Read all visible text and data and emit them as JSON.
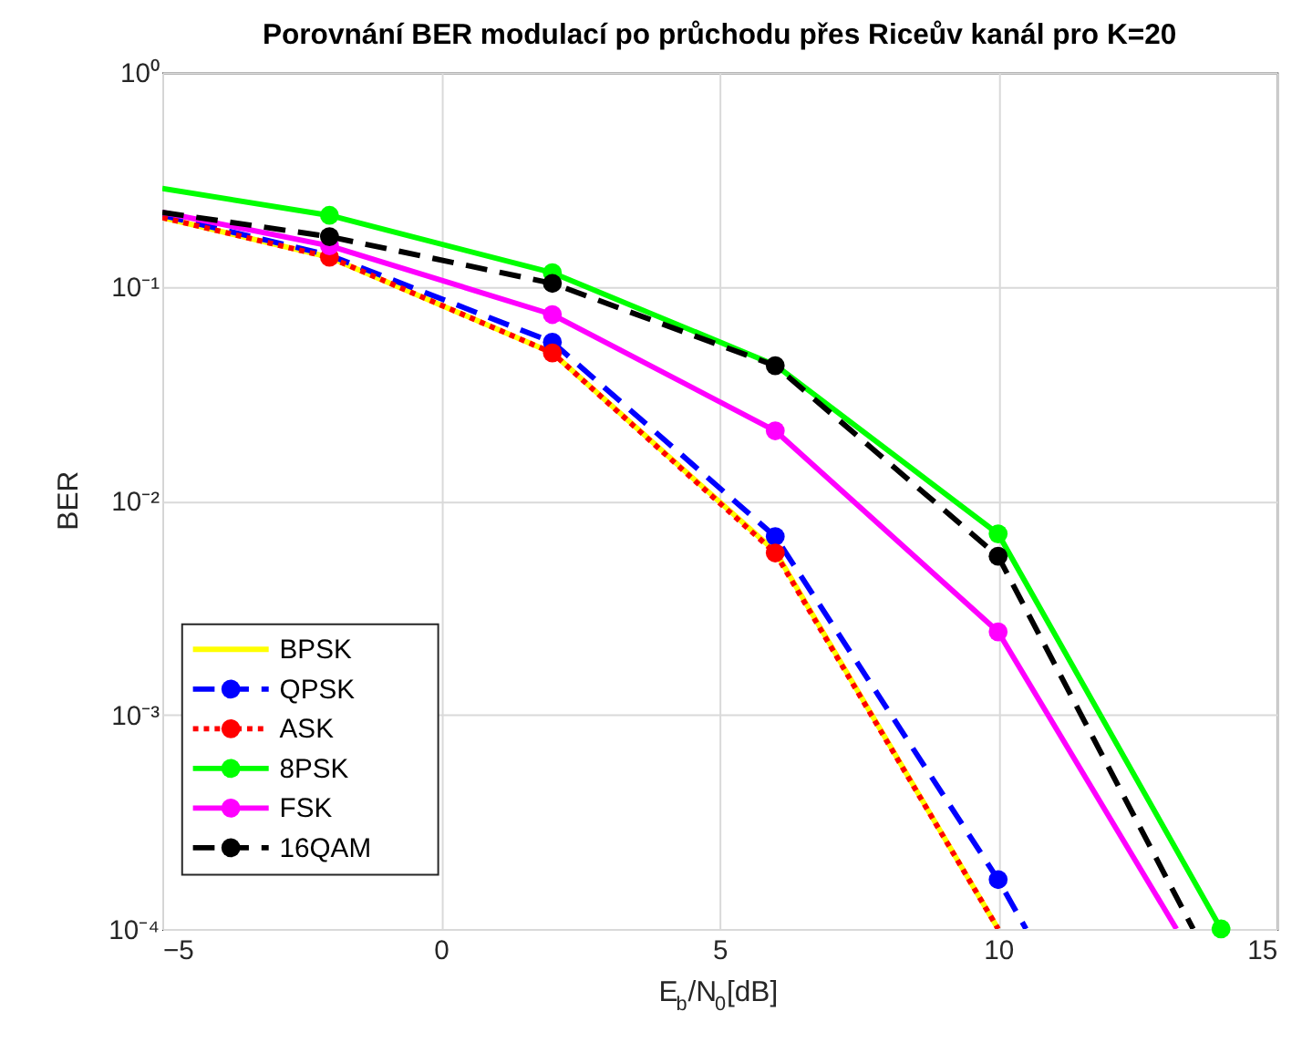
{
  "chart_data": {
    "type": "line",
    "title": "Porovnání BER modulací po průchodu přes Riceův kanál pro K=20",
    "xlabel": "E$_{b}$/N$_{0}$[dB]",
    "ylabel": "BER",
    "log": "y",
    "grid": true,
    "legend": "bottom left",
    "xlim": [
      -5,
      15
    ],
    "xticks": [
      -5,
      0,
      5,
      10,
      15
    ],
    "ylim": [
      0.0001,
      1
    ],
    "yticks": [
      {
        "value": 0.0001,
        "label": "10⁻⁴"
      },
      {
        "value": 0.001,
        "label": "10⁻³"
      },
      {
        "value": 0.01,
        "label": "10⁻²"
      },
      {
        "value": 0.1,
        "label": "10⁻¹"
      },
      {
        "value": 1,
        "label": "10⁰"
      }
    ],
    "series": [
      {
        "name": "BPSK",
        "color": "#ffff00",
        "line_style": "solid",
        "x": [
          -5,
          -2,
          2,
          6,
          10
        ],
        "values": [
          0.21,
          0.137,
          0.049,
          0.0058,
          0.0001
        ]
      },
      {
        "name": "QPSK",
        "color": "#0000ff",
        "line_style": "dashed",
        "x": [
          -5,
          -2,
          2,
          6,
          10,
          10.5
        ],
        "values": [
          0.215,
          0.14,
          0.055,
          0.0068,
          0.00017,
          0.0001
        ]
      },
      {
        "name": "ASK",
        "color": "#ff0000",
        "line_style": "dotted",
        "x": [
          -5,
          -2,
          2,
          6,
          10
        ],
        "values": [
          0.21,
          0.137,
          0.049,
          0.0057,
          0.0001
        ]
      },
      {
        "name": "8PSK",
        "color": "#00ff00",
        "line_style": "solid",
        "x": [
          -5,
          -2,
          2,
          6,
          10,
          14
        ],
        "values": [
          0.287,
          0.215,
          0.116,
          0.043,
          0.007,
          0.0001
        ]
      },
      {
        "name": "FSK",
        "color": "#ff00ff",
        "line_style": "solid",
        "x": [
          -5,
          -2,
          2,
          6,
          10,
          13.2
        ],
        "values": [
          0.222,
          0.155,
          0.074,
          0.0212,
          0.00244,
          0.0001
        ]
      },
      {
        "name": "16QAM",
        "color": "#000000",
        "line_style": "dashed",
        "x": [
          -5,
          -2,
          2,
          6,
          10,
          13.5
        ],
        "values": [
          0.222,
          0.171,
          0.1035,
          0.0427,
          0.0055,
          0.0001
        ]
      },
      {
        "type": "scatter",
        "color": "#0000ff",
        "marker": "circle",
        "x": [
          2,
          6,
          10
        ],
        "values": [
          0.055,
          0.0068,
          0.00017
        ]
      },
      {
        "type": "scatter",
        "color": "#ff0000",
        "marker": "circle",
        "x": [
          -2,
          2,
          6
        ],
        "values": [
          0.137,
          0.049,
          0.0057
        ]
      },
      {
        "type": "scatter",
        "color": "#00ff00",
        "marker": "circle",
        "x": [
          -2,
          2,
          6,
          10,
          14
        ],
        "values": [
          0.215,
          0.116,
          null,
          0.007,
          0.0001
        ]
      },
      {
        "type": "scatter",
        "color": "#ff00ff",
        "marker": "circle",
        "x": [
          -2,
          2,
          6,
          10
        ],
        "values": [
          0.155,
          0.074,
          0.0212,
          0.00244
        ]
      },
      {
        "type": "scatter",
        "color": "#000000",
        "marker": "circle",
        "x": [
          -2,
          2,
          6,
          10
        ],
        "values": [
          0.171,
          0.1035,
          0.0427,
          0.0055
        ]
      }
    ]
  }
}
